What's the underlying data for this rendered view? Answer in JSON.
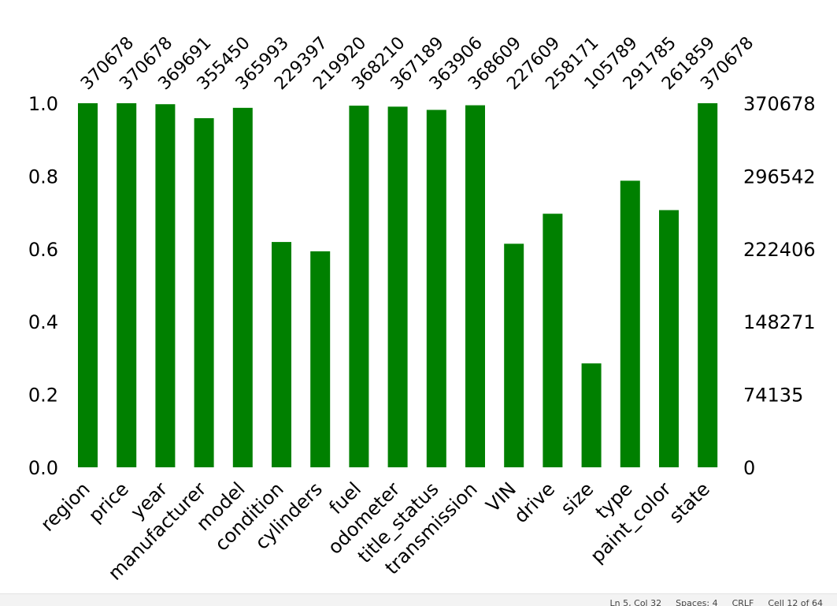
{
  "chart_data": {
    "type": "bar",
    "categories": [
      "region",
      "price",
      "year",
      "manufacturer",
      "model",
      "condition",
      "cylinders",
      "fuel",
      "odometer",
      "title_status",
      "transmission",
      "VIN",
      "drive",
      "size",
      "type",
      "paint_color",
      "state"
    ],
    "values": [
      370678,
      370678,
      369691,
      355450,
      365993,
      229397,
      219920,
      368210,
      367189,
      363906,
      368609,
      227609,
      258171,
      105789,
      291785,
      261859,
      370678
    ],
    "total": 370678,
    "left_ticks": [
      "0.0",
      "0.2",
      "0.4",
      "0.6",
      "0.8",
      "1.0"
    ],
    "right_ticks": [
      "0",
      "74135",
      "148271",
      "222406",
      "296542",
      "370678"
    ],
    "ylim": [
      0,
      1
    ],
    "bar_color": "#008000",
    "grid": false
  },
  "status": {
    "position": "Ln 5, Col 32",
    "spaces": "Spaces: 4",
    "eol": "CRLF",
    "cell": "Cell 12 of 64"
  }
}
